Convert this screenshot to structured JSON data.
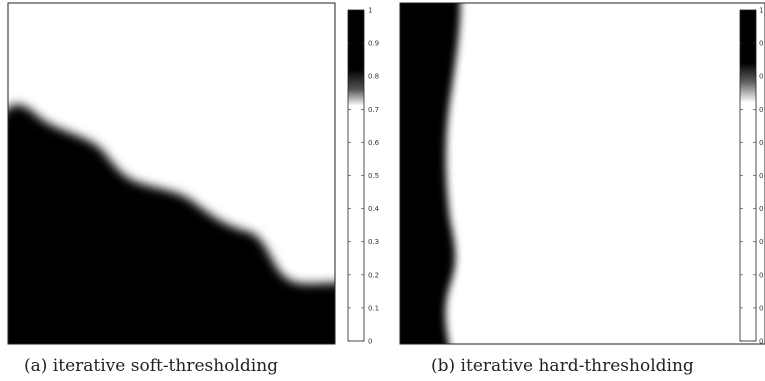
{
  "figure": {
    "panels": [
      {
        "caption": "(a) iterative soft-thresholding",
        "colorbar": {
          "ticks": [
            "0",
            "0.1",
            "0.2",
            "0.3",
            "0.4",
            "0.5",
            "0.6",
            "0.7",
            "0.8",
            "0.9",
            "1"
          ]
        }
      },
      {
        "caption": "(b) iterative hard-thresholding",
        "colorbar": {
          "ticks": [
            "0",
            "0",
            "0",
            "0",
            "0",
            "0",
            "0",
            "0",
            "0",
            "0",
            "1"
          ]
        }
      }
    ],
    "colors": {
      "foreground": "#000000",
      "background": "#ffffff",
      "frame": "#222222"
    }
  }
}
